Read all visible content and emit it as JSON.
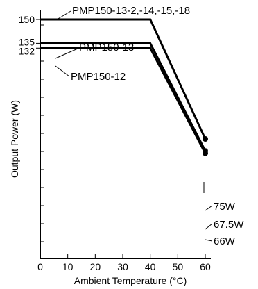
{
  "chart_data": {
    "type": "line",
    "xlabel": "Ambient Temperature (°C)",
    "ylabel": "Output Power (W)",
    "xlim": [
      0,
      60
    ],
    "ylim": [
      0,
      150
    ],
    "xticks": [
      0,
      10,
      20,
      30,
      40,
      50,
      60
    ],
    "y_labeled_ticks": [
      132,
      135,
      150
    ],
    "grid": false,
    "series": [
      {
        "name": "PMP150-13-2,-14,-15,-18",
        "x": [
          0,
          40,
          60
        ],
        "y": [
          150,
          150,
          75
        ]
      },
      {
        "name": "PMP150-13",
        "x": [
          0,
          40,
          60
        ],
        "y": [
          135,
          135,
          67.5
        ]
      },
      {
        "name": "PMP150-12",
        "x": [
          0,
          40,
          60
        ],
        "y": [
          132,
          132,
          66
        ]
      }
    ],
    "end_labels": [
      "75W",
      "67.5W",
      "66W"
    ]
  }
}
